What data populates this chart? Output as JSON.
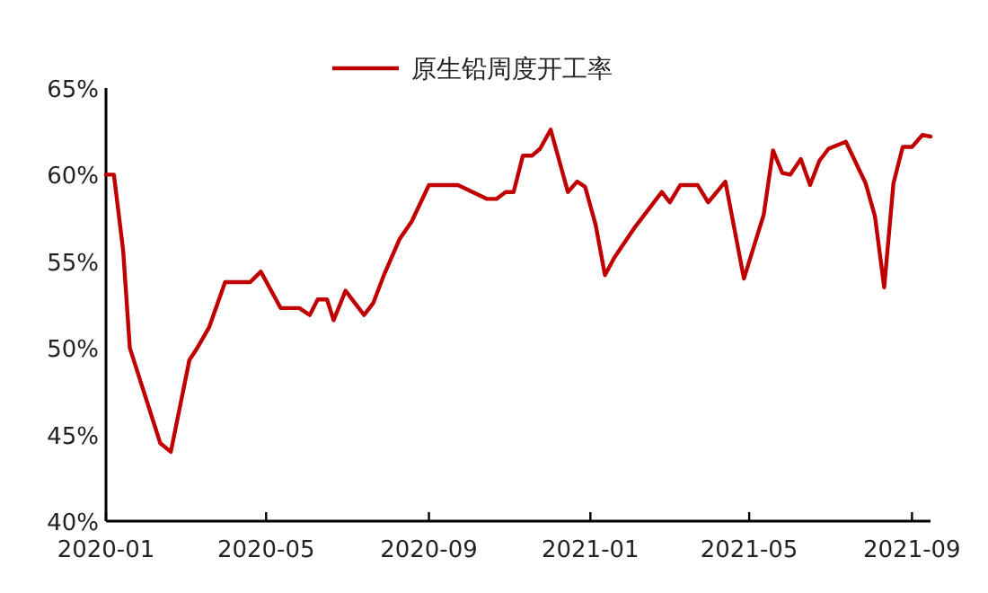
{
  "chart_data": {
    "type": "line",
    "legend": "top",
    "x": [
      "2020-01-01",
      "2020-01-07",
      "2020-01-14",
      "2020-01-19",
      "2020-02-11",
      "2020-02-19",
      "2020-03-04",
      "2020-03-10",
      "2020-03-19",
      "2020-03-31",
      "2020-04-19",
      "2020-04-27",
      "2020-05-12",
      "2020-05-26",
      "2020-06-03",
      "2020-06-09",
      "2020-06-16",
      "2020-06-21",
      "2020-06-30",
      "2020-07-14",
      "2020-07-21",
      "2020-07-29",
      "2020-08-10",
      "2020-08-19",
      "2020-09-01",
      "2020-09-23",
      "2020-10-15",
      "2020-10-22",
      "2020-10-29",
      "2020-11-04",
      "2020-11-11",
      "2020-11-18",
      "2020-11-24",
      "2020-12-02",
      "2020-12-15",
      "2020-12-22",
      "2020-12-28",
      "2021-01-05",
      "2021-01-12",
      "2021-01-19",
      "2021-02-03",
      "2021-02-24",
      "2021-03-02",
      "2021-03-10",
      "2021-03-23",
      "2021-03-31",
      "2021-04-13",
      "2021-04-27",
      "2021-05-12",
      "2021-05-19",
      "2021-05-26",
      "2021-06-01",
      "2021-06-09",
      "2021-06-16",
      "2021-06-23",
      "2021-06-30",
      "2021-07-13",
      "2021-07-28",
      "2021-08-04",
      "2021-08-11",
      "2021-08-18",
      "2021-08-25",
      "2021-09-01",
      "2021-09-09",
      "2021-09-15"
    ],
    "series": [
      {
        "name": "原生铅周度开工率",
        "color": "#c00000",
        "values": [
          60.0,
          60.0,
          55.6,
          50.0,
          44.5,
          44.0,
          49.3,
          50.0,
          51.2,
          53.8,
          53.8,
          54.4,
          52.3,
          52.3,
          51.9,
          52.8,
          52.8,
          51.6,
          53.3,
          51.9,
          52.6,
          54.2,
          56.3,
          57.3,
          59.4,
          59.4,
          58.6,
          58.6,
          59.0,
          59.0,
          61.1,
          61.1,
          61.5,
          62.6,
          59.0,
          59.6,
          59.3,
          57.1,
          54.2,
          55.2,
          56.9,
          59.0,
          58.4,
          59.4,
          59.4,
          58.4,
          59.6,
          54.0,
          57.7,
          61.4,
          60.1,
          60.0,
          60.9,
          59.4,
          60.8,
          61.5,
          61.9,
          59.5,
          57.6,
          53.5,
          59.5,
          61.6,
          61.6,
          62.3,
          62.2
        ]
      }
    ],
    "xlim": [
      "2020-01-01",
      "2021-09-15"
    ],
    "xticks": [
      "2020-01",
      "2020-05",
      "2020-09",
      "2021-01",
      "2021-05",
      "2021-09"
    ],
    "ylim": [
      40,
      65
    ],
    "yticks": [
      {
        "value": 40,
        "label": "40%"
      },
      {
        "value": 45,
        "label": "45%"
      },
      {
        "value": 50,
        "label": "50%"
      },
      {
        "value": 55,
        "label": "55%"
      },
      {
        "value": 60,
        "label": "60%"
      },
      {
        "value": 65,
        "label": "65%"
      }
    ]
  }
}
